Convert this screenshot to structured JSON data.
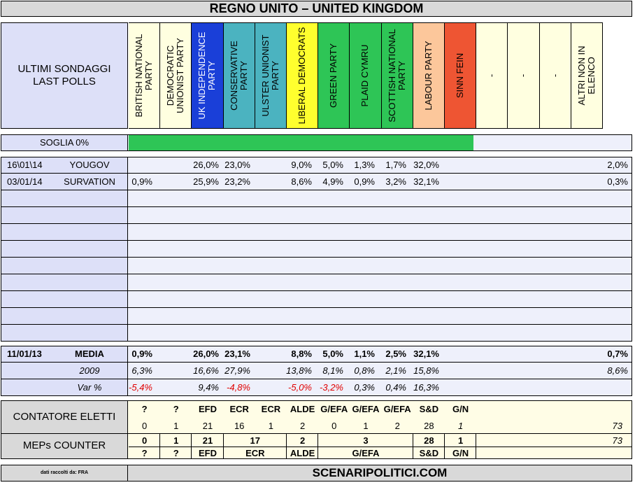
{
  "title": "REGNO UNITO – UNITED KINGDOM",
  "header": {
    "label_line1": "ULTIMI SONDAGGI",
    "label_line2": "LAST POLLS"
  },
  "parties": [
    {
      "name": "BRITISH NATIONAL PARTY",
      "color": "#ffffe0"
    },
    {
      "name": "DEMOCRATIC UNIONIST PARTY",
      "color": "#ffffe0"
    },
    {
      "name": "UK INDEPENDENCE PARTY",
      "color": "#1a3fd8"
    },
    {
      "name": "CONSERVATIVE PARTY",
      "color": "#4bb3c0"
    },
    {
      "name": "ULSTER UNIONIST PARTY",
      "color": "#4bb3c0"
    },
    {
      "name": "LIBERAL DEMOCRATS",
      "color": "#ffff2e"
    },
    {
      "name": "GREEN PARTY",
      "color": "#2ec556"
    },
    {
      "name": "PLAID CYMRU",
      "color": "#2ec556"
    },
    {
      "name": "SCOTTISH NATIONAL PARTY",
      "color": "#2ec556"
    },
    {
      "name": "LABOUR PARTY",
      "color": "#fcc79b"
    },
    {
      "name": "SINN FEIN",
      "color": "#ee5533"
    },
    {
      "name": "-",
      "color": "#ffffe0"
    },
    {
      "name": "-",
      "color": "#ffffe0"
    },
    {
      "name": "-",
      "color": "#ffffe0"
    },
    {
      "name": "ALTRI NON IN ELENCO",
      "color": "#ffffe0"
    }
  ],
  "soglia": {
    "label": "SOGLIA 0%",
    "fill_fraction": 0.685,
    "color": "#2ec556"
  },
  "polls": [
    {
      "date": "16\\01\\14",
      "institute": "YOUGOV",
      "values": [
        "",
        "",
        "26,0%",
        "23,0%",
        "",
        "9,0%",
        "5,0%",
        "1,3%",
        "1,7%",
        "32,0%",
        "",
        "",
        "",
        "",
        "2,0%"
      ]
    },
    {
      "date": "03/01/14",
      "institute": "SURVATION",
      "values": [
        "0,9%",
        "",
        "25,9%",
        "23,2%",
        "",
        "8,6%",
        "4,9%",
        "0,9%",
        "3,2%",
        "32,1%",
        "",
        "",
        "",
        "",
        "0,3%"
      ]
    }
  ],
  "summary": {
    "media": {
      "date": "11/01/13",
      "label": "MEDIA",
      "values": [
        "0,9%",
        "",
        "26,0%",
        "23,1%",
        "",
        "8,8%",
        "5,0%",
        "1,1%",
        "2,5%",
        "32,1%",
        "",
        "",
        "",
        "",
        "0,7%"
      ]
    },
    "y2009": {
      "label": "2009",
      "values": [
        "6,3%",
        "",
        "16,6%",
        "27,9%",
        "",
        "13,8%",
        "8,1%",
        "0,8%",
        "2,1%",
        "15,8%",
        "",
        "",
        "",
        "",
        "8,6%"
      ]
    },
    "var": {
      "label": "Var %",
      "values": [
        "-5,4%",
        "",
        "9,4%",
        "-4,8%",
        "",
        "-5,0%",
        "-3,2%",
        "0,3%",
        "0,4%",
        "16,3%",
        "",
        "",
        "",
        "",
        ""
      ]
    }
  },
  "contatore": {
    "label": "CONTATORE ELETTI",
    "groups": [
      "?",
      "?",
      "EFD",
      "ECR",
      "ECR",
      "ALDE",
      "G/EFA",
      "G/EFA",
      "G/EFA",
      "S&D",
      "G/N"
    ],
    "seats": [
      "0",
      "1",
      "21",
      "16",
      "1",
      "2",
      "0",
      "1",
      "2",
      "28",
      "1"
    ],
    "total": "73"
  },
  "meps": {
    "label": "MEPs COUNTER",
    "seats": [
      "0",
      "1",
      "21",
      "17",
      "2",
      "3",
      "28",
      "1"
    ],
    "groups": [
      "?",
      "?",
      "EFD",
      "ECR",
      "ALDE",
      "G/EFA",
      "S&D",
      "G/N"
    ],
    "total": "73"
  },
  "footer": {
    "note": "dati raccolti da: FRA",
    "site": "SCENARIPOLITICI.COM"
  }
}
